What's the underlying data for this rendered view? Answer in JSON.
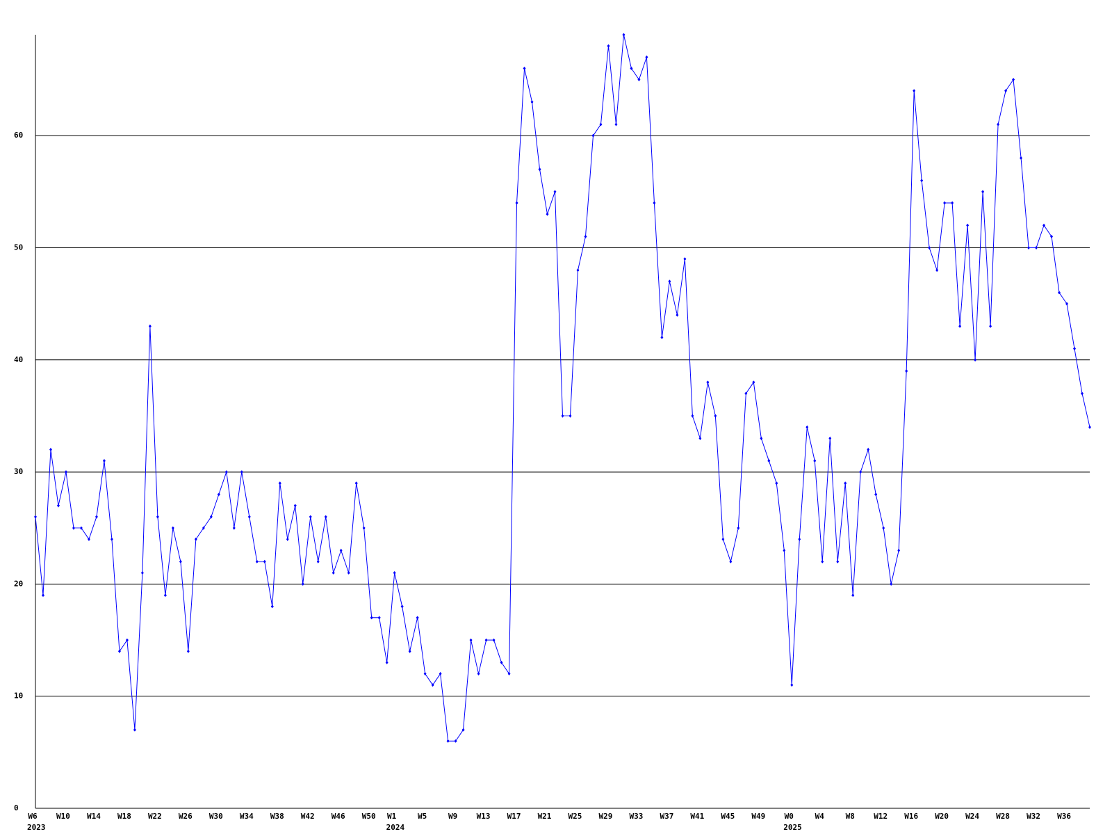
{
  "chart_data": {
    "type": "line",
    "categories": [
      "W6",
      null,
      null,
      null,
      "W10",
      null,
      null,
      null,
      "W14",
      null,
      null,
      null,
      "W18",
      null,
      null,
      null,
      "W22",
      null,
      null,
      null,
      "W26",
      null,
      null,
      null,
      "W30",
      null,
      null,
      null,
      "W34",
      null,
      null,
      null,
      "W38",
      null,
      null,
      null,
      "W42",
      null,
      null,
      null,
      "W46",
      null,
      null,
      null,
      "W50",
      null,
      null,
      "W1",
      null,
      null,
      null,
      "W5",
      null,
      null,
      null,
      "W9",
      null,
      null,
      null,
      "W13",
      null,
      null,
      null,
      "W17",
      null,
      null,
      null,
      "W21",
      null,
      null,
      null,
      "W25",
      null,
      null,
      null,
      "W29",
      null,
      null,
      null,
      "W33",
      null,
      null,
      null,
      "W37",
      null,
      null,
      null,
      "W41",
      null,
      null,
      null,
      "W45",
      null,
      null,
      null,
      "W49",
      null,
      null,
      null,
      "W0",
      null,
      null,
      null,
      "W4",
      null,
      null,
      null,
      "W8",
      null,
      null,
      null,
      "W12",
      null,
      null,
      null,
      "W16",
      null,
      null,
      null,
      "W20",
      null,
      null,
      null,
      "W24",
      null,
      null,
      null,
      "W28",
      null,
      null,
      null,
      "W32",
      null,
      null,
      null,
      "W36",
      null,
      null,
      null
    ],
    "years": [
      "2023",
      null,
      null,
      null,
      null,
      null,
      null,
      null,
      null,
      null,
      null,
      null,
      null,
      null,
      null,
      null,
      null,
      null,
      null,
      null,
      null,
      null,
      null,
      null,
      null,
      null,
      null,
      null,
      null,
      null,
      null,
      null,
      null,
      null,
      null,
      null,
      null,
      null,
      null,
      null,
      null,
      null,
      null,
      null,
      null,
      null,
      null,
      "2024",
      null,
      null,
      null,
      null,
      null,
      null,
      null,
      null,
      null,
      null,
      null,
      null,
      null,
      null,
      null,
      null,
      null,
      null,
      null,
      null,
      null,
      null,
      null,
      null,
      null,
      null,
      null,
      null,
      null,
      null,
      null,
      null,
      null,
      null,
      null,
      null,
      null,
      null,
      null,
      null,
      null,
      null,
      null,
      null,
      null,
      null,
      null,
      null,
      null,
      null,
      null,
      "2025",
      null,
      null,
      null,
      null,
      null,
      null,
      null,
      null,
      null,
      null,
      null,
      null,
      null,
      null,
      null,
      null,
      null,
      null,
      null,
      null,
      null,
      null,
      null,
      null,
      null,
      null,
      null,
      null,
      null,
      null,
      null,
      null,
      null,
      null,
      null,
      null,
      null,
      null,
      null
    ],
    "series": [
      {
        "color": "#0000ff",
        "values": [
          26,
          19,
          32,
          27,
          30,
          25,
          25,
          24,
          26,
          31,
          24,
          14,
          15,
          7,
          21,
          43,
          26,
          19,
          25,
          22,
          14,
          24,
          25,
          26,
          28,
          30,
          25,
          30,
          26,
          22,
          22,
          18,
          29,
          24,
          27,
          20,
          26,
          22,
          26,
          21,
          23,
          21,
          29,
          25,
          17,
          17,
          13,
          21,
          18,
          14,
          17,
          12,
          11,
          12,
          6,
          6,
          7,
          15,
          12,
          15,
          15,
          13,
          12,
          54,
          66,
          63,
          57,
          53,
          55,
          35,
          35,
          48,
          51,
          60,
          61,
          68,
          61,
          69,
          66,
          65,
          67,
          54,
          42,
          47,
          44,
          49,
          35,
          33,
          38,
          35,
          24,
          22,
          25,
          37,
          38,
          33,
          31,
          29,
          23,
          11,
          24,
          34,
          31,
          22,
          33,
          22,
          29,
          19,
          30,
          32,
          28,
          25,
          20,
          23,
          39,
          64,
          56,
          50,
          48,
          54,
          54,
          43,
          52,
          40,
          55,
          43,
          61,
          64,
          65,
          58,
          50,
          50,
          52,
          51,
          46,
          45,
          41,
          37,
          34
        ]
      }
    ],
    "ylim": [
      0,
      69
    ],
    "yticks": [
      0,
      10,
      20,
      30,
      40,
      50,
      60
    ],
    "grid": true
  }
}
